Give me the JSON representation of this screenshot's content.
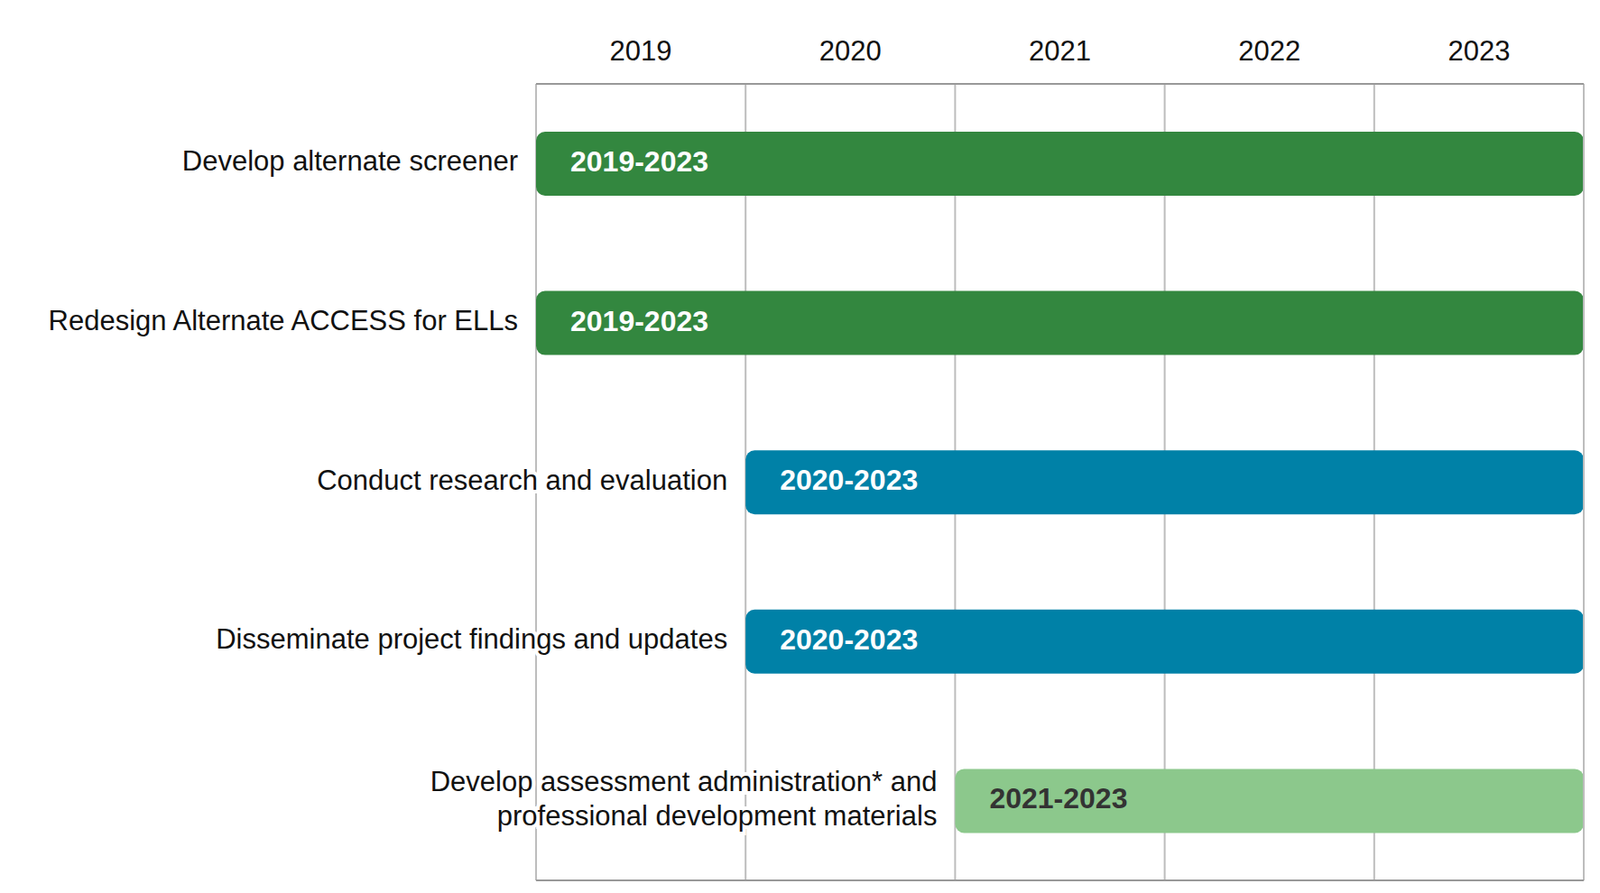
{
  "chart_data": {
    "type": "gantt",
    "orientation": "horizontal",
    "categories": [
      "Develop alternate screener",
      "Redesign Alternate ACCESS for ELLs",
      "Conduct research and evaluation",
      "Disseminate project findings and updates",
      "Develop assessment administration* and professional development materials"
    ],
    "start": [
      2019,
      2019,
      2020,
      2020,
      2021
    ],
    "end": [
      2024,
      2024,
      2024,
      2024,
      2024
    ],
    "value_labels": [
      "2019-2023",
      "2019-2023",
      "2020-2023",
      "2020-2023",
      "2021-2023"
    ],
    "colors": [
      "#33873f",
      "#33873f",
      "#0081a7",
      "#0081a7",
      "#8cc88c"
    ],
    "xlim": [
      2019,
      2024
    ],
    "xticks": [
      2019,
      2020,
      2021,
      2022,
      2023
    ],
    "grid": true,
    "data_labels": true
  }
}
